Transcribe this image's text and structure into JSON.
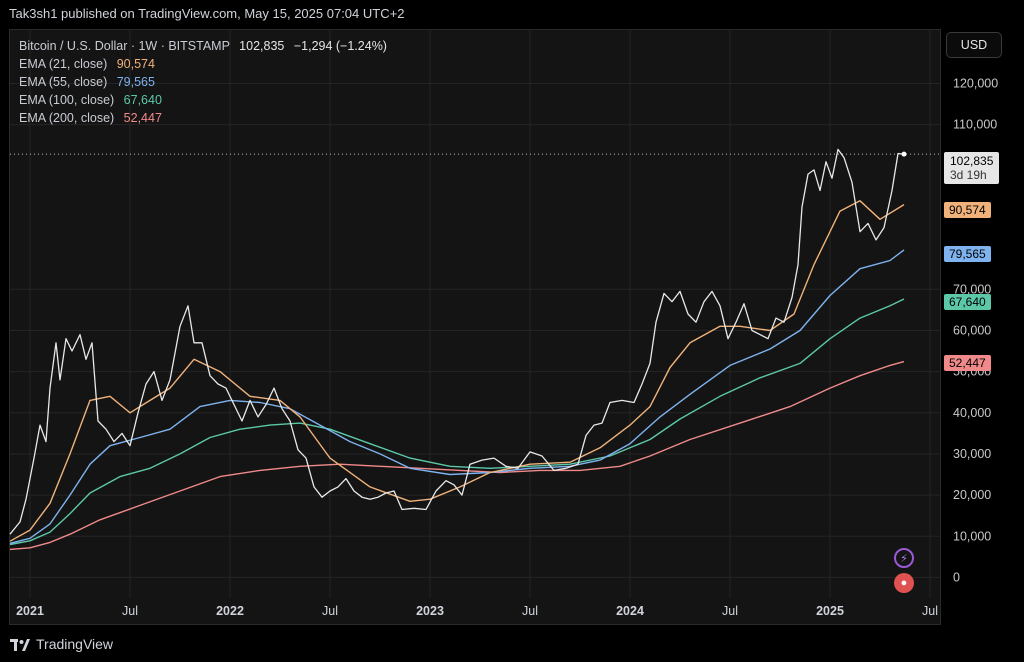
{
  "header": {
    "publisher_line": "Tak3sh1 published on TradingView.com, May 15, 2025 07:04 UTC+2"
  },
  "currency_button": "USD",
  "footer": {
    "brand": "TradingView"
  },
  "colors": {
    "price": "#e8e8e8",
    "ema21": "#f0b27a",
    "ema55": "#7fb3ef",
    "ema100": "#5cc8a8",
    "ema200": "#f08a8a"
  },
  "legend": {
    "main_label": "Bitcoin / U.S. Dollar · 1W · BITSTAMP",
    "main_value": "102,835",
    "main_change": "−1,294 (−1.24%)",
    "ema21_label": "EMA (21, close)",
    "ema21_value": "90,574",
    "ema55_label": "EMA (55, close)",
    "ema55_value": "79,565",
    "ema100_label": "EMA (100, close)",
    "ema100_value": "67,640",
    "ema200_label": "EMA (200, close)",
    "ema200_value": "52,447"
  },
  "price_tag": {
    "value": "102,835",
    "countdown": "3d 19h"
  },
  "chart_data": {
    "type": "line",
    "title": "Bitcoin / U.S. Dollar · 1W · BITSTAMP",
    "xlabel": "",
    "ylabel": "",
    "ylim": [
      -5000,
      133000
    ],
    "xlim": [
      2020.9,
      2025.55
    ],
    "grid": true,
    "legend_position": "top-left",
    "y_ticks": [
      0,
      10000,
      20000,
      30000,
      40000,
      50000,
      60000,
      70000,
      110000,
      120000
    ],
    "y_tick_labels": [
      "0",
      "10,000",
      "20,000",
      "30,000",
      "40,000",
      "50,000",
      "60,000",
      "70,000",
      "110,000",
      "120,000"
    ],
    "x_ticks": [
      2021.0,
      2021.5,
      2022.0,
      2022.5,
      2023.0,
      2023.5,
      2024.0,
      2024.5,
      2025.0,
      2025.5
    ],
    "x_tick_labels": [
      "2021",
      "Jul",
      "2022",
      "Jul",
      "2023",
      "Jul",
      "2024",
      "Jul",
      "2025",
      "Jul"
    ],
    "x_tick_bold": [
      true,
      false,
      true,
      false,
      true,
      false,
      true,
      false,
      true,
      false
    ],
    "last_price": 102835,
    "series": [
      {
        "key": "price",
        "name": "Bitcoin / U.S. Dollar",
        "points": [
          [
            2020.9,
            10500
          ],
          [
            2020.95,
            13500
          ],
          [
            2020.98,
            19000
          ],
          [
            2021.02,
            29000
          ],
          [
            2021.05,
            37000
          ],
          [
            2021.08,
            33000
          ],
          [
            2021.1,
            46000
          ],
          [
            2021.13,
            57000
          ],
          [
            2021.15,
            48000
          ],
          [
            2021.18,
            58000
          ],
          [
            2021.21,
            55000
          ],
          [
            2021.25,
            59000
          ],
          [
            2021.28,
            53000
          ],
          [
            2021.31,
            57000
          ],
          [
            2021.34,
            38000
          ],
          [
            2021.38,
            36000
          ],
          [
            2021.42,
            33000
          ],
          [
            2021.46,
            35000
          ],
          [
            2021.5,
            32000
          ],
          [
            2021.54,
            40000
          ],
          [
            2021.58,
            47000
          ],
          [
            2021.62,
            50000
          ],
          [
            2021.66,
            43000
          ],
          [
            2021.7,
            48000
          ],
          [
            2021.75,
            61000
          ],
          [
            2021.79,
            66000
          ],
          [
            2021.82,
            57000
          ],
          [
            2021.86,
            57000
          ],
          [
            2021.9,
            49000
          ],
          [
            2021.94,
            47000
          ],
          [
            2021.98,
            46000
          ],
          [
            2022.02,
            42000
          ],
          [
            2022.06,
            38000
          ],
          [
            2022.1,
            43000
          ],
          [
            2022.14,
            39000
          ],
          [
            2022.18,
            42000
          ],
          [
            2022.22,
            46000
          ],
          [
            2022.26,
            41000
          ],
          [
            2022.3,
            38000
          ],
          [
            2022.34,
            31000
          ],
          [
            2022.38,
            29000
          ],
          [
            2022.42,
            22000
          ],
          [
            2022.46,
            19500
          ],
          [
            2022.5,
            21000
          ],
          [
            2022.54,
            22000
          ],
          [
            2022.58,
            24000
          ],
          [
            2022.62,
            21000
          ],
          [
            2022.66,
            19500
          ],
          [
            2022.7,
            19000
          ],
          [
            2022.74,
            19500
          ],
          [
            2022.78,
            20500
          ],
          [
            2022.82,
            21000
          ],
          [
            2022.86,
            16500
          ],
          [
            2022.92,
            16800
          ],
          [
            2022.98,
            16500
          ],
          [
            2023.03,
            21000
          ],
          [
            2023.08,
            23500
          ],
          [
            2023.12,
            22500
          ],
          [
            2023.16,
            20000
          ],
          [
            2023.2,
            27500
          ],
          [
            2023.26,
            28500
          ],
          [
            2023.32,
            29000
          ],
          [
            2023.38,
            27000
          ],
          [
            2023.44,
            26500
          ],
          [
            2023.5,
            30500
          ],
          [
            2023.56,
            29500
          ],
          [
            2023.62,
            26000
          ],
          [
            2023.68,
            26500
          ],
          [
            2023.74,
            27500
          ],
          [
            2023.78,
            34500
          ],
          [
            2023.82,
            37000
          ],
          [
            2023.86,
            37500
          ],
          [
            2023.9,
            42500
          ],
          [
            2023.96,
            43000
          ],
          [
            2024.02,
            42500
          ],
          [
            2024.06,
            47000
          ],
          [
            2024.1,
            52000
          ],
          [
            2024.13,
            62000
          ],
          [
            2024.17,
            69000
          ],
          [
            2024.21,
            67000
          ],
          [
            2024.25,
            69500
          ],
          [
            2024.29,
            64000
          ],
          [
            2024.33,
            62000
          ],
          [
            2024.37,
            67000
          ],
          [
            2024.41,
            69500
          ],
          [
            2024.45,
            66000
          ],
          [
            2024.49,
            58000
          ],
          [
            2024.53,
            62000
          ],
          [
            2024.57,
            66500
          ],
          [
            2024.61,
            60000
          ],
          [
            2024.65,
            59000
          ],
          [
            2024.69,
            58000
          ],
          [
            2024.73,
            63000
          ],
          [
            2024.77,
            62000
          ],
          [
            2024.81,
            68000
          ],
          [
            2024.84,
            76000
          ],
          [
            2024.86,
            90000
          ],
          [
            2024.89,
            98000
          ],
          [
            2024.92,
            99000
          ],
          [
            2024.95,
            94000
          ],
          [
            2024.98,
            101000
          ],
          [
            2025.01,
            97000
          ],
          [
            2025.04,
            104000
          ],
          [
            2025.07,
            102000
          ],
          [
            2025.11,
            96000
          ],
          [
            2025.15,
            84000
          ],
          [
            2025.19,
            86000
          ],
          [
            2025.23,
            82000
          ],
          [
            2025.27,
            85000
          ],
          [
            2025.31,
            94000
          ],
          [
            2025.34,
            103000
          ],
          [
            2025.37,
            102835
          ]
        ]
      },
      {
        "key": "ema21",
        "name": "EMA (21, close)",
        "points": [
          [
            2020.9,
            8800
          ],
          [
            2021.0,
            11500
          ],
          [
            2021.1,
            18000
          ],
          [
            2021.2,
            30000
          ],
          [
            2021.3,
            43000
          ],
          [
            2021.4,
            44000
          ],
          [
            2021.5,
            40000
          ],
          [
            2021.6,
            43000
          ],
          [
            2021.7,
            46000
          ],
          [
            2021.82,
            53000
          ],
          [
            2021.95,
            50000
          ],
          [
            2022.1,
            44000
          ],
          [
            2022.25,
            43000
          ],
          [
            2022.35,
            39000
          ],
          [
            2022.5,
            29000
          ],
          [
            2022.7,
            22000
          ],
          [
            2022.9,
            18500
          ],
          [
            2023.0,
            19000
          ],
          [
            2023.15,
            22000
          ],
          [
            2023.3,
            25500
          ],
          [
            2023.5,
            27500
          ],
          [
            2023.7,
            28000
          ],
          [
            2023.85,
            31500
          ],
          [
            2024.0,
            37000
          ],
          [
            2024.1,
            41500
          ],
          [
            2024.2,
            51000
          ],
          [
            2024.3,
            57000
          ],
          [
            2024.45,
            61000
          ],
          [
            2024.55,
            61000
          ],
          [
            2024.7,
            60000
          ],
          [
            2024.82,
            64000
          ],
          [
            2024.92,
            76000
          ],
          [
            2025.05,
            89000
          ],
          [
            2025.15,
            91500
          ],
          [
            2025.25,
            87000
          ],
          [
            2025.37,
            90574
          ]
        ]
      },
      {
        "key": "ema55",
        "name": "EMA (55, close)",
        "points": [
          [
            2020.9,
            8300
          ],
          [
            2021.0,
            9500
          ],
          [
            2021.1,
            13000
          ],
          [
            2021.2,
            20000
          ],
          [
            2021.3,
            27500
          ],
          [
            2021.4,
            32000
          ],
          [
            2021.55,
            34000
          ],
          [
            2021.7,
            36000
          ],
          [
            2021.85,
            41500
          ],
          [
            2022.0,
            43000
          ],
          [
            2022.15,
            42500
          ],
          [
            2022.3,
            41000
          ],
          [
            2022.45,
            37000
          ],
          [
            2022.6,
            33000
          ],
          [
            2022.75,
            30000
          ],
          [
            2022.9,
            26500
          ],
          [
            2023.1,
            25000
          ],
          [
            2023.3,
            25500
          ],
          [
            2023.5,
            26500
          ],
          [
            2023.7,
            27000
          ],
          [
            2023.85,
            28500
          ],
          [
            2024.0,
            32500
          ],
          [
            2024.15,
            39000
          ],
          [
            2024.3,
            44500
          ],
          [
            2024.5,
            51500
          ],
          [
            2024.7,
            55500
          ],
          [
            2024.85,
            60000
          ],
          [
            2025.0,
            68500
          ],
          [
            2025.15,
            75000
          ],
          [
            2025.3,
            77000
          ],
          [
            2025.37,
            79565
          ]
        ]
      },
      {
        "key": "ema100",
        "name": "EMA (100, close)",
        "points": [
          [
            2020.9,
            8000
          ],
          [
            2021.0,
            8900
          ],
          [
            2021.1,
            11000
          ],
          [
            2021.2,
            15500
          ],
          [
            2021.3,
            20500
          ],
          [
            2021.45,
            24500
          ],
          [
            2021.6,
            26500
          ],
          [
            2021.75,
            30000
          ],
          [
            2021.9,
            34000
          ],
          [
            2022.05,
            36000
          ],
          [
            2022.2,
            37000
          ],
          [
            2022.35,
            37500
          ],
          [
            2022.5,
            36000
          ],
          [
            2022.7,
            32500
          ],
          [
            2022.9,
            29000
          ],
          [
            2023.1,
            27000
          ],
          [
            2023.3,
            26500
          ],
          [
            2023.5,
            27000
          ],
          [
            2023.7,
            27500
          ],
          [
            2023.9,
            29500
          ],
          [
            2024.1,
            33500
          ],
          [
            2024.25,
            38500
          ],
          [
            2024.45,
            44000
          ],
          [
            2024.65,
            48500
          ],
          [
            2024.85,
            52000
          ],
          [
            2025.0,
            58000
          ],
          [
            2025.15,
            63000
          ],
          [
            2025.3,
            66000
          ],
          [
            2025.37,
            67640
          ]
        ]
      },
      {
        "key": "ema200",
        "name": "EMA (200, close)",
        "points": [
          [
            2020.9,
            6800
          ],
          [
            2021.0,
            7200
          ],
          [
            2021.1,
            8500
          ],
          [
            2021.2,
            10500
          ],
          [
            2021.35,
            14000
          ],
          [
            2021.55,
            17500
          ],
          [
            2021.75,
            21000
          ],
          [
            2021.95,
            24500
          ],
          [
            2022.15,
            26000
          ],
          [
            2022.35,
            27000
          ],
          [
            2022.55,
            27500
          ],
          [
            2022.75,
            27000
          ],
          [
            2022.95,
            26500
          ],
          [
            2023.15,
            26000
          ],
          [
            2023.35,
            25500
          ],
          [
            2023.55,
            26000
          ],
          [
            2023.75,
            26000
          ],
          [
            2023.95,
            27000
          ],
          [
            2024.1,
            29500
          ],
          [
            2024.3,
            33500
          ],
          [
            2024.55,
            37500
          ],
          [
            2024.8,
            41500
          ],
          [
            2025.0,
            46000
          ],
          [
            2025.15,
            49000
          ],
          [
            2025.3,
            51500
          ],
          [
            2025.37,
            52447
          ]
        ]
      }
    ]
  }
}
